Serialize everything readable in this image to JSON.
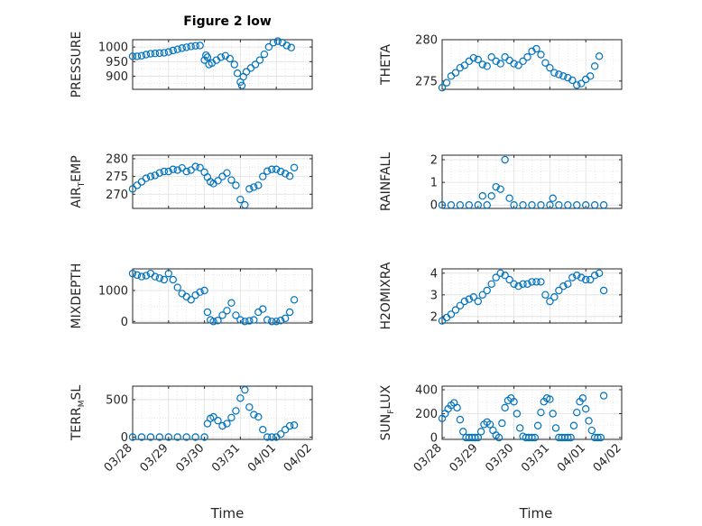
{
  "figure": {
    "title": "Figure 2 low",
    "xlabel": "Time",
    "marker_color": "#0072BD",
    "grid_color": "#d9d9d9"
  },
  "chart_data": [
    {
      "type": "scatter",
      "name": "pressure",
      "title": "Figure 2 low",
      "ylabel": "PRESSURE",
      "ylim": [
        855,
        1025
      ],
      "yticks": [
        900,
        950,
        1000
      ],
      "xlim": [
        "03/28",
        "04/02"
      ],
      "xticks": [
        "03/28",
        "03/29",
        "03/30",
        "03/31",
        "04/01",
        "04/02"
      ],
      "x": [
        "03/28 00:00",
        "03/28 03:00",
        "03/28 06:00",
        "03/28 09:00",
        "03/28 12:00",
        "03/28 15:00",
        "03/28 18:00",
        "03/28 21:00",
        "03/29 00:00",
        "03/29 03:00",
        "03/29 06:00",
        "03/29 09:00",
        "03/29 12:00",
        "03/29 15:00",
        "03/29 18:00",
        "03/29 21:00",
        "03/30 00:00",
        "03/30 01:00",
        "03/30 02:00",
        "03/30 03:00",
        "03/30 05:00",
        "03/30 08:00",
        "03/30 11:00",
        "03/30 14:00",
        "03/30 17:00",
        "03/30 20:00",
        "03/30 22:00",
        "03/31 00:00",
        "03/31 01:00",
        "03/31 02:00",
        "03/31 04:00",
        "03/31 07:00",
        "03/31 10:00",
        "03/31 13:00",
        "03/31 16:00",
        "03/31 19:00",
        "03/31 22:00",
        "04/01 01:00",
        "04/01 04:00",
        "04/01 07:00",
        "04/01 10:00"
      ],
      "y": [
        968,
        968,
        970,
        974,
        977,
        978,
        979,
        980,
        983,
        988,
        992,
        996,
        999,
        1002,
        1004,
        1005,
        955,
        972,
        965,
        940,
        945,
        955,
        965,
        970,
        960,
        940,
        910,
        880,
        868,
        898,
        915,
        928,
        940,
        955,
        975,
        1000,
        1015,
        1020,
        1015,
        1005,
        998
      ]
    },
    {
      "type": "scatter",
      "name": "theta",
      "ylabel": "THETA",
      "ylim": [
        274,
        280
      ],
      "yticks": [
        275,
        280
      ],
      "xlim": [
        "03/28",
        "04/02"
      ],
      "xticks": [
        "03/28",
        "03/29",
        "03/30",
        "03/31",
        "04/01",
        "04/02"
      ],
      "x": [
        "03/28 00:00",
        "03/28 03:00",
        "03/28 06:00",
        "03/28 09:00",
        "03/28 12:00",
        "03/28 15:00",
        "03/28 18:00",
        "03/28 21:00",
        "03/29 00:00",
        "03/29 03:00",
        "03/29 06:00",
        "03/29 09:00",
        "03/29 12:00",
        "03/29 15:00",
        "03/29 18:00",
        "03/29 21:00",
        "03/30 00:00",
        "03/30 03:00",
        "03/30 06:00",
        "03/30 09:00",
        "03/30 12:00",
        "03/30 15:00",
        "03/30 18:00",
        "03/30 21:00",
        "03/31 00:00",
        "03/31 03:00",
        "03/31 06:00",
        "03/31 09:00",
        "03/31 12:00",
        "03/31 15:00",
        "03/31 18:00",
        "03/31 21:00",
        "04/01 00:00",
        "04/01 03:00",
        "04/01 06:00",
        "04/01 09:00"
      ],
      "y": [
        274.2,
        274.8,
        275.6,
        276.0,
        276.6,
        276.9,
        277.4,
        277.8,
        277.6,
        277.0,
        276.8,
        277.9,
        277.4,
        277.1,
        277.9,
        277.5,
        277.1,
        276.9,
        277.4,
        277.9,
        278.6,
        278.9,
        278.2,
        277.2,
        276.6,
        276.0,
        275.8,
        275.6,
        275.4,
        275.1,
        274.5,
        274.7,
        275.2,
        275.6,
        276.8,
        278.0
      ]
    },
    {
      "type": "scatter",
      "name": "air_temp",
      "ylabel": "AIR",
      "ylabel_sub": "T",
      "ylabel_suffix": "EMP",
      "ylim": [
        266,
        281
      ],
      "yticks": [
        270,
        275,
        280
      ],
      "xlim": [
        "03/28",
        "04/02"
      ],
      "xticks": [
        "03/28",
        "03/29",
        "03/30",
        "03/31",
        "04/01",
        "04/02"
      ],
      "x": [
        "03/28 00:00",
        "03/28 03:00",
        "03/28 06:00",
        "03/28 09:00",
        "03/28 12:00",
        "03/28 15:00",
        "03/28 18:00",
        "03/28 21:00",
        "03/29 00:00",
        "03/29 03:00",
        "03/29 06:00",
        "03/29 09:00",
        "03/29 12:00",
        "03/29 15:00",
        "03/29 18:00",
        "03/29 21:00",
        "03/30 00:00",
        "03/30 02:00",
        "03/30 04:00",
        "03/30 06:00",
        "03/30 09:00",
        "03/30 12:00",
        "03/30 15:00",
        "03/30 18:00",
        "03/30 21:00",
        "03/31 00:00",
        "03/31 03:00",
        "03/31 06:00",
        "03/31 09:00",
        "03/31 12:00",
        "03/31 15:00",
        "03/31 18:00",
        "03/31 21:00",
        "04/01 00:00",
        "04/01 03:00",
        "04/01 06:00",
        "04/01 09:00",
        "04/01 12:00"
      ],
      "y": [
        271.5,
        272.5,
        273.5,
        274.5,
        275.0,
        275.3,
        276.0,
        276.4,
        276.4,
        277.0,
        276.8,
        277.4,
        276.4,
        276.8,
        277.8,
        277.5,
        276.2,
        274.8,
        273.5,
        273.0,
        273.8,
        275.0,
        276.0,
        274.0,
        272.5,
        268.5,
        267.0,
        271.5,
        272.0,
        272.5,
        275.0,
        276.5,
        277.0,
        277.0,
        276.4,
        275.8,
        275.1,
        277.5
      ]
    },
    {
      "type": "scatter",
      "name": "rainfall",
      "ylabel": "RAINFALL",
      "ylim": [
        -0.15,
        2.2
      ],
      "yticks": [
        0,
        1,
        2
      ],
      "xlim": [
        "03/28",
        "04/02"
      ],
      "xticks": [
        "03/28",
        "03/29",
        "03/30",
        "03/31",
        "04/01",
        "04/02"
      ],
      "x": [
        "03/28 00:00",
        "03/28 06:00",
        "03/28 12:00",
        "03/28 18:00",
        "03/29 00:00",
        "03/29 03:00",
        "03/29 06:00",
        "03/29 09:00",
        "03/29 12:00",
        "03/29 15:00",
        "03/29 18:00",
        "03/29 21:00",
        "03/30 00:00",
        "03/30 06:00",
        "03/30 12:00",
        "03/30 18:00",
        "03/31 00:00",
        "03/31 02:00",
        "03/31 06:00",
        "03/31 12:00",
        "03/31 18:00",
        "04/01 00:00",
        "04/01 06:00",
        "04/01 12:00"
      ],
      "y": [
        0,
        0,
        0,
        0,
        0,
        0.4,
        0,
        0.4,
        0.8,
        0.7,
        2.0,
        0.3,
        0,
        0,
        0,
        0,
        0,
        0.3,
        0,
        0,
        0,
        0,
        0,
        0
      ]
    },
    {
      "type": "scatter",
      "name": "mixdepth",
      "ylabel": "MIXDEPTH",
      "ylim": [
        -50,
        1700
      ],
      "yticks": [
        0,
        1000
      ],
      "xlim": [
        "03/28",
        "04/02"
      ],
      "xticks": [
        "03/28",
        "03/29",
        "03/30",
        "03/31",
        "04/01",
        "04/02"
      ],
      "x": [
        "03/28 00:00",
        "03/28 03:00",
        "03/28 06:00",
        "03/28 09:00",
        "03/28 12:00",
        "03/28 15:00",
        "03/28 18:00",
        "03/28 21:00",
        "03/29 00:00",
        "03/29 03:00",
        "03/29 06:00",
        "03/29 09:00",
        "03/29 12:00",
        "03/29 15:00",
        "03/29 18:00",
        "03/29 21:00",
        "03/30 00:00",
        "03/30 02:00",
        "03/30 04:00",
        "03/30 06:00",
        "03/30 09:00",
        "03/30 12:00",
        "03/30 15:00",
        "03/30 18:00",
        "03/30 21:00",
        "03/31 00:00",
        "03/31 03:00",
        "03/31 06:00",
        "03/31 09:00",
        "03/31 12:00",
        "03/31 15:00",
        "03/31 18:00",
        "03/31 21:00",
        "04/01 00:00",
        "04/01 03:00",
        "04/01 06:00",
        "04/01 09:00",
        "04/01 12:00"
      ],
      "y": [
        1550,
        1500,
        1450,
        1480,
        1550,
        1450,
        1400,
        1350,
        1550,
        1350,
        1100,
        900,
        800,
        700,
        850,
        950,
        1000,
        300,
        50,
        0,
        30,
        200,
        350,
        600,
        200,
        50,
        0,
        20,
        50,
        300,
        400,
        50,
        0,
        0,
        30,
        100,
        300,
        700
      ]
    },
    {
      "type": "scatter",
      "name": "h2omixra",
      "ylabel": "H2OMIXRA",
      "ylim": [
        1.7,
        4.2
      ],
      "yticks": [
        2,
        3,
        4
      ],
      "xlim": [
        "03/28",
        "04/02"
      ],
      "xticks": [
        "03/28",
        "03/29",
        "03/30",
        "03/31",
        "04/01",
        "04/02"
      ],
      "x": [
        "03/28 00:00",
        "03/28 03:00",
        "03/28 06:00",
        "03/28 09:00",
        "03/28 12:00",
        "03/28 15:00",
        "03/28 18:00",
        "03/28 21:00",
        "03/29 00:00",
        "03/29 03:00",
        "03/29 06:00",
        "03/29 09:00",
        "03/29 12:00",
        "03/29 15:00",
        "03/29 18:00",
        "03/29 21:00",
        "03/30 00:00",
        "03/30 03:00",
        "03/30 06:00",
        "03/30 09:00",
        "03/30 12:00",
        "03/30 15:00",
        "03/30 18:00",
        "03/30 21:00",
        "03/31 00:00",
        "03/31 03:00",
        "03/31 06:00",
        "03/31 09:00",
        "03/31 12:00",
        "03/31 15:00",
        "03/31 18:00",
        "03/31 21:00",
        "04/01 00:00",
        "04/01 03:00",
        "04/01 06:00",
        "04/01 09:00",
        "04/01 12:00"
      ],
      "y": [
        1.8,
        1.95,
        2.1,
        2.3,
        2.5,
        2.7,
        2.8,
        2.9,
        2.7,
        3.0,
        3.2,
        3.5,
        3.8,
        4.0,
        3.9,
        3.7,
        3.5,
        3.4,
        3.5,
        3.5,
        3.6,
        3.6,
        3.6,
        3.0,
        2.7,
        2.9,
        3.2,
        3.4,
        3.5,
        3.8,
        3.9,
        3.8,
        3.7,
        3.7,
        3.9,
        4.0,
        3.2
      ]
    },
    {
      "type": "scatter",
      "name": "terr_msl",
      "ylabel": "TERR",
      "ylabel_sub": "M",
      "ylabel_suffix": "SL",
      "ylim": [
        -30,
        680
      ],
      "yticks": [
        0,
        500
      ],
      "xlim": [
        "03/28",
        "04/02"
      ],
      "xticks": [
        "03/28",
        "03/29",
        "03/30",
        "03/31",
        "04/01",
        "04/02"
      ],
      "x": [
        "03/28 00:00",
        "03/28 06:00",
        "03/28 12:00",
        "03/28 18:00",
        "03/29 00:00",
        "03/29 06:00",
        "03/29 12:00",
        "03/29 18:00",
        "03/30 00:00",
        "03/30 02:00",
        "03/30 04:00",
        "03/30 06:00",
        "03/30 09:00",
        "03/30 12:00",
        "03/30 15:00",
        "03/30 18:00",
        "03/30 21:00",
        "03/31 00:00",
        "03/31 03:00",
        "03/31 06:00",
        "03/31 09:00",
        "03/31 12:00",
        "03/31 15:00",
        "03/31 18:00",
        "03/31 21:00",
        "04/01 00:00",
        "04/01 03:00",
        "04/01 06:00",
        "04/01 09:00",
        "04/01 12:00"
      ],
      "y": [
        0,
        0,
        0,
        0,
        0,
        0,
        0,
        0,
        0,
        180,
        250,
        270,
        220,
        150,
        180,
        260,
        350,
        520,
        630,
        400,
        300,
        270,
        100,
        0,
        0,
        0,
        40,
        100,
        150,
        160
      ]
    },
    {
      "type": "scatter",
      "name": "sun_flux",
      "ylabel": "SUN",
      "ylabel_sub": "F",
      "ylabel_suffix": "LUX",
      "ylim": [
        -15,
        430
      ],
      "yticks": [
        0,
        200,
        400
      ],
      "xlim": [
        "03/28",
        "04/02"
      ],
      "xticks": [
        "03/28",
        "03/29",
        "03/30",
        "03/31",
        "04/01",
        "04/02"
      ],
      "x": [
        "03/28 00:00",
        "03/28 02:00",
        "03/28 04:00",
        "03/28 06:00",
        "03/28 08:00",
        "03/28 10:00",
        "03/28 12:00",
        "03/28 14:00",
        "03/28 16:00",
        "03/28 18:00",
        "03/28 20:00",
        "03/28 22:00",
        "03/29 00:00",
        "03/29 02:00",
        "03/29 04:00",
        "03/29 06:00",
        "03/29 08:00",
        "03/29 10:00",
        "03/29 12:00",
        "03/29 14:00",
        "03/29 16:00",
        "03/29 18:00",
        "03/29 20:00",
        "03/29 22:00",
        "03/30 00:00",
        "03/30 02:00",
        "03/30 04:00",
        "03/30 06:00",
        "03/30 08:00",
        "03/30 10:00",
        "03/30 12:00",
        "03/30 14:00",
        "03/30 16:00",
        "03/30 18:00",
        "03/30 20:00",
        "03/30 22:00",
        "03/31 00:00",
        "03/31 02:00",
        "03/31 04:00",
        "03/31 06:00",
        "03/31 08:00",
        "03/31 10:00",
        "03/31 12:00",
        "03/31 14:00",
        "03/31 16:00",
        "03/31 18:00",
        "03/31 20:00",
        "03/31 22:00",
        "04/01 00:00",
        "04/01 02:00",
        "04/01 04:00",
        "04/01 06:00",
        "04/01 08:00",
        "04/01 10:00",
        "04/01 12:00"
      ],
      "y": [
        160,
        200,
        240,
        270,
        290,
        250,
        150,
        50,
        0,
        0,
        0,
        0,
        0,
        50,
        110,
        130,
        110,
        60,
        20,
        0,
        120,
        250,
        310,
        330,
        300,
        200,
        80,
        10,
        0,
        0,
        0,
        0,
        100,
        210,
        300,
        330,
        320,
        200,
        80,
        0,
        0,
        0,
        0,
        0,
        100,
        210,
        300,
        330,
        240,
        140,
        60,
        0,
        0,
        0,
        350
      ]
    }
  ]
}
